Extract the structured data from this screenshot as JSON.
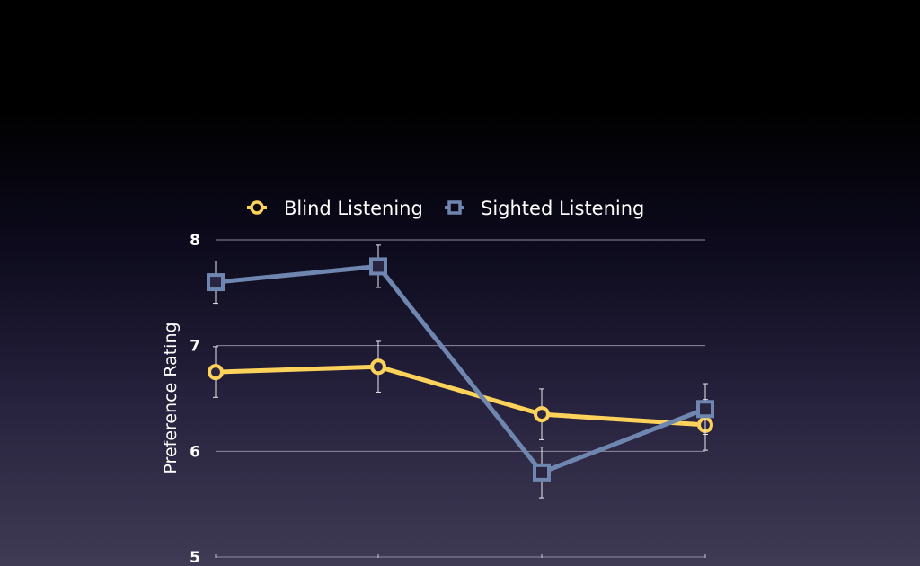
{
  "chart_data": {
    "type": "line",
    "title": "",
    "xlabel": "",
    "ylabel": "Preference Rating",
    "ylim": [
      5,
      8
    ],
    "yticks": [
      5,
      6,
      7,
      8
    ],
    "grid": true,
    "legend_position": "top",
    "x": [
      1,
      2,
      3,
      4
    ],
    "series": [
      {
        "name": "Blind Listening",
        "marker": "circle",
        "color": "#fcd25a",
        "values": [
          6.75,
          6.8,
          6.35,
          6.25
        ],
        "error": [
          0.24,
          0.24,
          0.24,
          0.24
        ]
      },
      {
        "name": "Sighted Listening",
        "marker": "square",
        "color": "#6e86b0",
        "values": [
          7.6,
          7.75,
          5.8,
          6.4
        ],
        "error": [
          0.2,
          0.2,
          0.24,
          0.24
        ]
      }
    ]
  }
}
